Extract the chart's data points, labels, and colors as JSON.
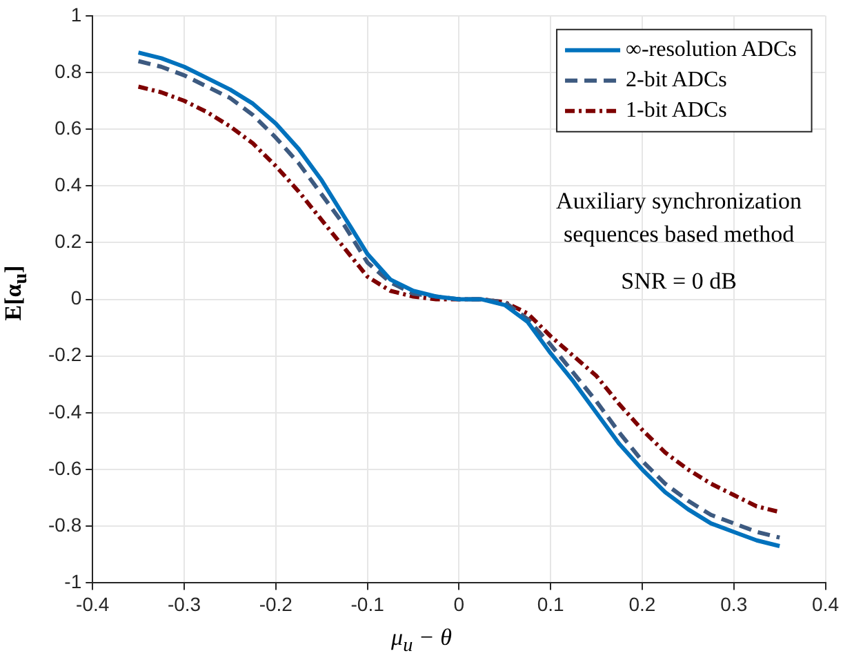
{
  "chart_data": {
    "type": "line",
    "xlabel": "μ$_{u}$ − θ",
    "ylabel": "E[α$_{u}$]",
    "x": [
      -0.35,
      -0.325,
      -0.3,
      -0.275,
      -0.25,
      -0.225,
      -0.2,
      -0.175,
      -0.15,
      -0.125,
      -0.1,
      -0.075,
      -0.05,
      -0.025,
      0,
      0.025,
      0.05,
      0.075,
      0.1,
      0.125,
      0.15,
      0.175,
      0.2,
      0.225,
      0.25,
      0.275,
      0.3,
      0.325,
      0.35
    ],
    "series": [
      {
        "name": "∞-resolution ADCs",
        "color": "#0072bd",
        "line_style": "solid",
        "values": [
          0.87,
          0.85,
          0.82,
          0.78,
          0.74,
          0.69,
          0.62,
          0.53,
          0.42,
          0.29,
          0.16,
          0.07,
          0.03,
          0.01,
          0,
          0,
          -0.02,
          -0.08,
          -0.19,
          -0.29,
          -0.4,
          -0.51,
          -0.6,
          -0.68,
          -0.74,
          -0.79,
          -0.82,
          -0.85,
          -0.87
        ]
      },
      {
        "name": "2-bit ADCs",
        "color": "#3d5a80",
        "line_style": "dashed",
        "values": [
          0.84,
          0.82,
          0.79,
          0.75,
          0.71,
          0.65,
          0.57,
          0.48,
          0.37,
          0.26,
          0.13,
          0.06,
          0.02,
          0.01,
          0,
          0,
          -0.01,
          -0.07,
          -0.16,
          -0.26,
          -0.36,
          -0.47,
          -0.57,
          -0.65,
          -0.71,
          -0.76,
          -0.79,
          -0.82,
          -0.84
        ]
      },
      {
        "name": "1-bit ADCs",
        "color": "#7e0000",
        "line_style": "dotted",
        "values": [
          0.75,
          0.73,
          0.7,
          0.66,
          0.61,
          0.55,
          0.47,
          0.38,
          0.28,
          0.18,
          0.08,
          0.03,
          0.01,
          0,
          0,
          0,
          -0.01,
          -0.05,
          -0.13,
          -0.2,
          -0.27,
          -0.37,
          -0.46,
          -0.54,
          -0.6,
          -0.65,
          -0.69,
          -0.73,
          -0.75
        ]
      }
    ],
    "xlim": [
      -0.4,
      0.4
    ],
    "xticks": [
      -0.4,
      -0.3,
      -0.2,
      -0.1,
      0,
      0.1,
      0.2,
      0.3,
      0.4
    ],
    "ylim": [
      -1,
      1
    ],
    "yticks": [
      -1,
      -0.8,
      -0.6,
      -0.4,
      -0.2,
      0,
      0.2,
      0.4,
      0.6,
      0.8,
      1
    ],
    "grid": true,
    "legend": "top right",
    "marker": "none",
    "annotations": [
      "Auxiliary synchronization\nsequences based method",
      "SNR = 0 dB"
    ]
  }
}
